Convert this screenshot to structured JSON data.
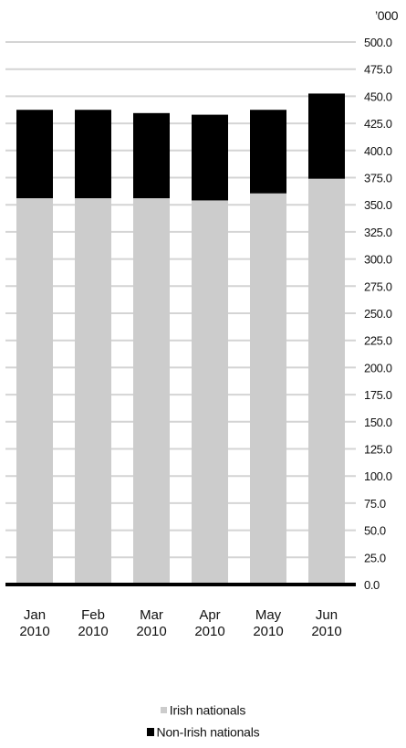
{
  "chart_data": {
    "type": "bar",
    "stacked": true,
    "unit_label": "’000",
    "categories": [
      [
        "Jan",
        "2010"
      ],
      [
        "Feb",
        "2010"
      ],
      [
        "Mar",
        "2010"
      ],
      [
        "Apr",
        "2010"
      ],
      [
        "May",
        "2010"
      ],
      [
        "Jun",
        "2010"
      ]
    ],
    "series": [
      {
        "name": "Irish nationals",
        "color": "#cccccc",
        "values": [
          356.0,
          356.0,
          356.0,
          354.0,
          360.5,
          374.0
        ]
      },
      {
        "name": "Non-Irish nationals",
        "color": "#000000",
        "values": [
          81.5,
          81.5,
          78.5,
          79.0,
          77.0,
          78.5
        ]
      }
    ],
    "ylim": [
      0,
      500
    ],
    "yticks": [
      "0.0",
      "25.0",
      "50.0",
      "75.0",
      "100.0",
      "125.0",
      "150.0",
      "175.0",
      "200.0",
      "225.0",
      "250.0",
      "275.0",
      "300.0",
      "325.0",
      "350.0",
      "375.0",
      "400.0",
      "425.0",
      "450.0",
      "475.0",
      "500.0"
    ],
    "grid": true,
    "y_axis_side": "right",
    "legend_position": "bottom"
  }
}
